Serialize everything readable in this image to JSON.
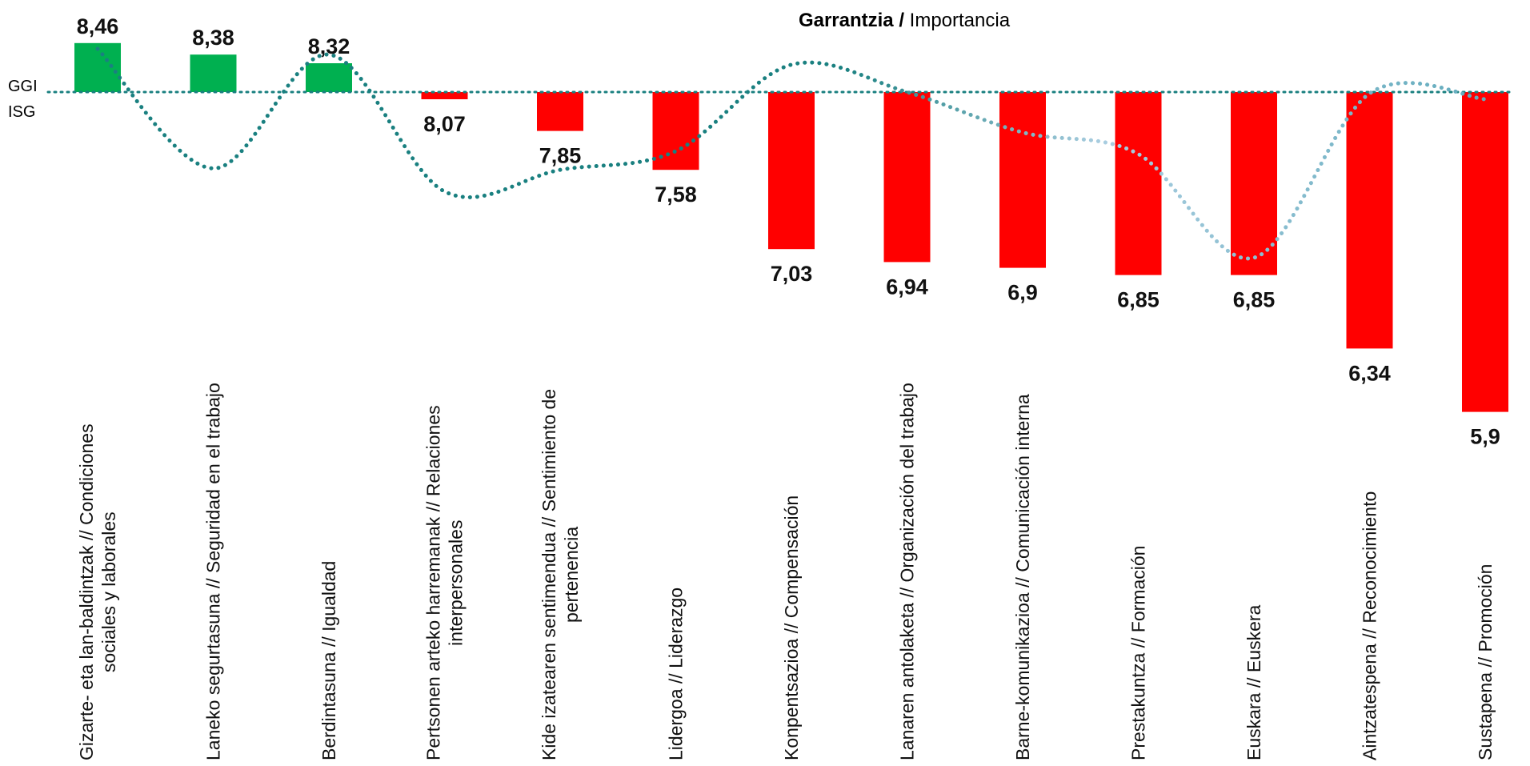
{
  "chart_data": {
    "type": "bar",
    "title_bold": "Garrantzia /",
    "title_rest": " Importancia",
    "reference_line": {
      "label_eu": "GGI",
      "label_es": "ISG",
      "value": 8.12
    },
    "categories": [
      [
        "Gizarte- eta lan-baldintzak // Condiciones",
        "sociales y laborales"
      ],
      [
        "Laneko segurtasuna // Seguridad en el trabajo"
      ],
      [
        "Berdintasuna // Igualdad"
      ],
      [
        "Pertsonen arteko harremanak // Relaciones",
        "interpersonales"
      ],
      [
        "Kide izatearen sentimendua // Sentimiento de",
        "pertenencia"
      ],
      [
        "Lidergoa // Liderazgo"
      ],
      [
        "Konpentsazioa // Compensación"
      ],
      [
        "Lanaren antolaketa // Organización del trabajo"
      ],
      [
        "Barne-komunikazioa // Comunicación interna"
      ],
      [
        "Prestakuntza // Formación"
      ],
      [
        "Euskara // Euskera"
      ],
      [
        "Aintzatespena // Reconocimiento"
      ],
      [
        "Sustapena // Promoción"
      ]
    ],
    "values": [
      8.46,
      8.38,
      8.32,
      8.07,
      7.85,
      7.58,
      7.03,
      6.94,
      6.9,
      6.85,
      6.85,
      6.34,
      5.9
    ],
    "value_labels": [
      "8,46",
      "8,38",
      "8,32",
      "8,07",
      "7,85",
      "7,58",
      "7,03",
      "6,94",
      "6,9",
      "6,85",
      "6,85",
      "6,34",
      "5,9"
    ],
    "importance_series": {
      "name": "Garrantzia / Importancia",
      "style": "dotted",
      "values": [
        8.42,
        7.59,
        8.38,
        7.43,
        7.58,
        7.71,
        8.31,
        8.12,
        7.84,
        7.69,
        6.97,
        8.11,
        8.07
      ]
    },
    "colors": {
      "positive": "#00b050",
      "negative": "#ff0000",
      "reference": "#1a8080",
      "importance": "#1a8080",
      "importance_fade": "#a9cde0",
      "title_bold": "#4f81bd",
      "title_rest": "#4f81bd",
      "text": "#111111"
    },
    "grid": false,
    "legend": "none"
  }
}
